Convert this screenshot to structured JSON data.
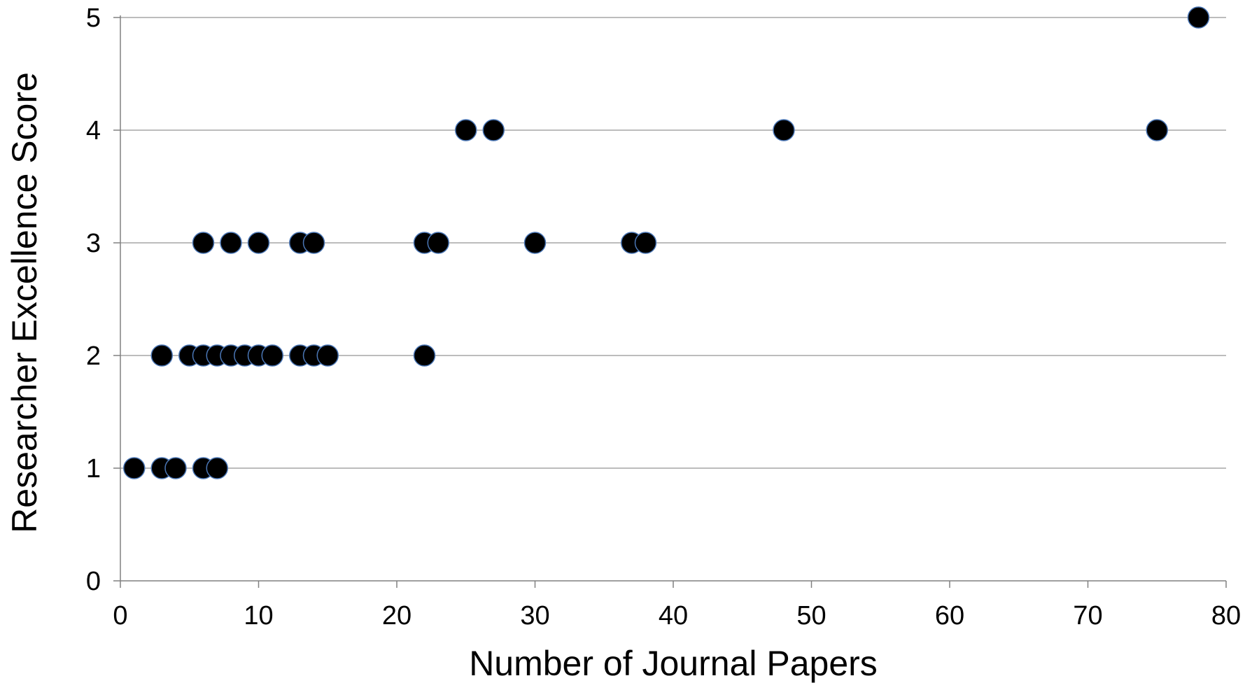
{
  "chart_data": {
    "type": "scatter",
    "title": "",
    "xlabel": "Number of Journal Papers",
    "ylabel": "Researcher Excellence Score",
    "xlim": [
      0,
      80
    ],
    "ylim": [
      0,
      5
    ],
    "x_ticks": [
      0,
      10,
      20,
      30,
      40,
      50,
      60,
      70,
      80
    ],
    "y_ticks": [
      0,
      1,
      2,
      3,
      4,
      5
    ],
    "grid": "horizontal",
    "legend": "none",
    "marker_color": "#000000",
    "marker_edge_color": "#4a76b5",
    "grid_color": "#a6a6a6",
    "axis_color": "#808080",
    "series": [
      {
        "points": [
          {
            "x": 1,
            "y": 1
          },
          {
            "x": 3,
            "y": 1
          },
          {
            "x": 4,
            "y": 1
          },
          {
            "x": 6,
            "y": 1
          },
          {
            "x": 7,
            "y": 1
          },
          {
            "x": 3,
            "y": 2
          },
          {
            "x": 5,
            "y": 2
          },
          {
            "x": 6,
            "y": 2
          },
          {
            "x": 7,
            "y": 2
          },
          {
            "x": 8,
            "y": 2
          },
          {
            "x": 9,
            "y": 2
          },
          {
            "x": 10,
            "y": 2
          },
          {
            "x": 11,
            "y": 2
          },
          {
            "x": 13,
            "y": 2
          },
          {
            "x": 14,
            "y": 2
          },
          {
            "x": 15,
            "y": 2
          },
          {
            "x": 22,
            "y": 2
          },
          {
            "x": 6,
            "y": 3
          },
          {
            "x": 8,
            "y": 3
          },
          {
            "x": 10,
            "y": 3
          },
          {
            "x": 13,
            "y": 3
          },
          {
            "x": 14,
            "y": 3
          },
          {
            "x": 22,
            "y": 3
          },
          {
            "x": 23,
            "y": 3
          },
          {
            "x": 30,
            "y": 3
          },
          {
            "x": 37,
            "y": 3
          },
          {
            "x": 38,
            "y": 3
          },
          {
            "x": 25,
            "y": 4
          },
          {
            "x": 27,
            "y": 4
          },
          {
            "x": 48,
            "y": 4
          },
          {
            "x": 75,
            "y": 4
          },
          {
            "x": 78,
            "y": 5
          }
        ]
      }
    ]
  }
}
